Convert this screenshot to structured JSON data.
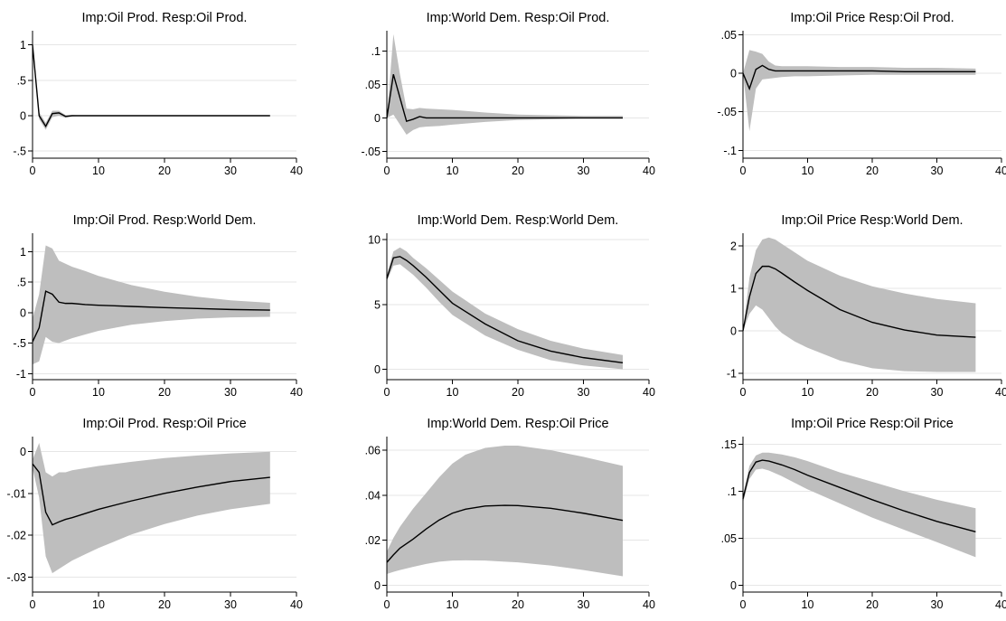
{
  "chart_data": [
    {
      "type": "area",
      "title": "Imp:Oil Prod. Resp:Oil Prod.",
      "xlim": [
        0,
        40
      ],
      "ylim": [
        -0.6,
        1.2
      ],
      "xticks": [
        0,
        10,
        20,
        30,
        40
      ],
      "xtick_labels": [
        "0",
        "10",
        "20",
        "30",
        "40"
      ],
      "yticks": [
        -0.5,
        0,
        0.5,
        1
      ],
      "ytick_labels": [
        "-.5",
        "0",
        ".5",
        "1"
      ],
      "grid": true,
      "series": [
        {
          "type": "line",
          "x": [
            0,
            1,
            2,
            3,
            4,
            5,
            6,
            8,
            10,
            15,
            20,
            25,
            30,
            36
          ],
          "values": [
            1.0,
            0.0,
            -0.15,
            0.03,
            0.04,
            -0.01,
            0.0,
            0.0,
            0.0,
            0.0,
            0.0,
            0.0,
            0.0,
            0.0
          ]
        },
        {
          "type": "band",
          "x": [
            0,
            1,
            2,
            3,
            4,
            5,
            6,
            8,
            10,
            15,
            20,
            25,
            30,
            36
          ],
          "lower": [
            1.0,
            -0.05,
            -0.2,
            -0.02,
            0.0,
            -0.03,
            -0.01,
            0.0,
            0.0,
            0.0,
            0.0,
            0.0,
            0.0,
            0.0
          ],
          "upper": [
            1.0,
            0.05,
            -0.1,
            0.07,
            0.07,
            0.01,
            0.01,
            0.0,
            0.0,
            0.0,
            0.0,
            0.0,
            0.0,
            0.0
          ]
        }
      ]
    },
    {
      "type": "area",
      "title": "Imp:World Dem. Resp:Oil Prod.",
      "xlim": [
        0,
        40
      ],
      "ylim": [
        -0.06,
        0.13
      ],
      "xticks": [
        0,
        10,
        20,
        30,
        40
      ],
      "xtick_labels": [
        "0",
        "10",
        "20",
        "30",
        "40"
      ],
      "yticks": [
        -0.05,
        0,
        0.05,
        0.1
      ],
      "ytick_labels": [
        "-.05",
        "0",
        ".05",
        ".1"
      ],
      "grid": true,
      "series": [
        {
          "type": "line",
          "x": [
            0,
            1,
            2,
            3,
            4,
            5,
            6,
            8,
            10,
            15,
            20,
            25,
            30,
            36
          ],
          "values": [
            0.0,
            0.065,
            0.03,
            -0.005,
            -0.002,
            0.002,
            0.0,
            0.0,
            0.0,
            0.0,
            0.0,
            0.0,
            0.0,
            0.0
          ]
        },
        {
          "type": "band",
          "x": [
            0,
            1,
            2,
            3,
            4,
            5,
            6,
            8,
            10,
            15,
            20,
            25,
            30,
            36
          ],
          "lower": [
            0.0,
            0.005,
            -0.01,
            -0.025,
            -0.018,
            -0.014,
            -0.013,
            -0.012,
            -0.01,
            -0.006,
            -0.003,
            -0.002,
            -0.001,
            -0.001
          ],
          "upper": [
            0.0,
            0.125,
            0.065,
            0.014,
            0.013,
            0.015,
            0.014,
            0.013,
            0.012,
            0.008,
            0.005,
            0.004,
            0.003,
            0.003
          ]
        }
      ]
    },
    {
      "type": "area",
      "title": "Imp:Oil Price Resp:Oil Prod.",
      "xlim": [
        0,
        40
      ],
      "ylim": [
        -0.11,
        0.055
      ],
      "xticks": [
        0,
        10,
        20,
        30,
        40
      ],
      "xtick_labels": [
        "0",
        "10",
        "20",
        "30",
        "40"
      ],
      "yticks": [
        -0.1,
        -0.05,
        0,
        0.05
      ],
      "ytick_labels": [
        "-.1",
        "-.05",
        "0",
        ".05"
      ],
      "grid": true,
      "series": [
        {
          "type": "line",
          "x": [
            0,
            1,
            2,
            3,
            4,
            5,
            6,
            8,
            10,
            15,
            20,
            25,
            30,
            36
          ],
          "values": [
            0.0,
            -0.02,
            0.005,
            0.01,
            0.005,
            0.003,
            0.003,
            0.003,
            0.003,
            0.003,
            0.003,
            0.002,
            0.002,
            0.002
          ]
        },
        {
          "type": "band",
          "x": [
            0,
            1,
            2,
            3,
            4,
            5,
            6,
            8,
            10,
            15,
            20,
            25,
            30,
            36
          ],
          "lower": [
            0.0,
            -0.075,
            -0.02,
            -0.008,
            -0.007,
            -0.006,
            -0.005,
            -0.004,
            -0.004,
            -0.003,
            -0.002,
            -0.002,
            -0.002,
            -0.002
          ],
          "upper": [
            0.0,
            0.03,
            0.028,
            0.025,
            0.015,
            0.01,
            0.009,
            0.009,
            0.009,
            0.008,
            0.008,
            0.007,
            0.007,
            0.006
          ]
        }
      ]
    },
    {
      "type": "area",
      "title": "Imp:Oil Prod. Resp:World Dem.",
      "xlim": [
        0,
        40
      ],
      "ylim": [
        -1.1,
        1.3
      ],
      "xticks": [
        0,
        10,
        20,
        30,
        40
      ],
      "xtick_labels": [
        "0",
        "10",
        "20",
        "30",
        "40"
      ],
      "yticks": [
        -1,
        -0.5,
        0,
        0.5,
        1
      ],
      "ytick_labels": [
        "-1",
        "-.5",
        "0",
        ".5",
        "1"
      ],
      "grid": true,
      "series": [
        {
          "type": "line",
          "x": [
            0,
            1,
            2,
            3,
            4,
            5,
            6,
            8,
            10,
            15,
            20,
            25,
            30,
            36
          ],
          "values": [
            -0.48,
            -0.25,
            0.35,
            0.3,
            0.17,
            0.15,
            0.15,
            0.13,
            0.12,
            0.1,
            0.08,
            0.065,
            0.05,
            0.04
          ]
        },
        {
          "type": "band",
          "x": [
            0,
            1,
            2,
            3,
            4,
            5,
            6,
            8,
            10,
            15,
            20,
            25,
            30,
            36
          ],
          "lower": [
            -0.85,
            -0.8,
            -0.4,
            -0.48,
            -0.5,
            -0.46,
            -0.42,
            -0.36,
            -0.3,
            -0.2,
            -0.14,
            -0.1,
            -0.08,
            -0.07
          ],
          "upper": [
            -0.1,
            0.3,
            1.1,
            1.05,
            0.85,
            0.8,
            0.75,
            0.68,
            0.6,
            0.45,
            0.34,
            0.26,
            0.2,
            0.16
          ]
        }
      ]
    },
    {
      "type": "area",
      "title": "Imp:World Dem. Resp:World Dem.",
      "xlim": [
        0,
        40
      ],
      "ylim": [
        -0.8,
        10.5
      ],
      "xticks": [
        0,
        10,
        20,
        30,
        40
      ],
      "xtick_labels": [
        "0",
        "10",
        "20",
        "30",
        "40"
      ],
      "yticks": [
        0,
        5,
        10
      ],
      "ytick_labels": [
        "0",
        "5",
        "10"
      ],
      "grid": true,
      "series": [
        {
          "type": "line",
          "x": [
            0,
            1,
            2,
            3,
            4,
            6,
            8,
            10,
            15,
            20,
            25,
            30,
            36
          ],
          "values": [
            7.0,
            8.6,
            8.7,
            8.4,
            8.0,
            7.1,
            6.1,
            5.1,
            3.5,
            2.2,
            1.4,
            0.9,
            0.5
          ]
        },
        {
          "type": "band",
          "x": [
            0,
            1,
            2,
            3,
            4,
            6,
            8,
            10,
            15,
            20,
            25,
            30,
            36
          ],
          "lower": [
            6.8,
            8.0,
            8.1,
            7.7,
            7.3,
            6.3,
            5.2,
            4.2,
            2.6,
            1.5,
            0.7,
            0.3,
            0.0
          ],
          "upper": [
            7.3,
            9.1,
            9.4,
            9.1,
            8.6,
            7.8,
            6.9,
            6.0,
            4.3,
            3.1,
            2.2,
            1.6,
            1.1
          ]
        }
      ]
    },
    {
      "type": "area",
      "title": "Imp:Oil Price Resp:World Dem.",
      "xlim": [
        0,
        40
      ],
      "ylim": [
        -1.15,
        2.3
      ],
      "xticks": [
        0,
        10,
        20,
        30,
        40
      ],
      "xtick_labels": [
        "0",
        "10",
        "20",
        "30",
        "40"
      ],
      "yticks": [
        -1,
        0,
        1,
        2
      ],
      "ytick_labels": [
        "-1",
        "0",
        "1",
        "2"
      ],
      "grid": true,
      "series": [
        {
          "type": "line",
          "x": [
            0,
            1,
            2,
            3,
            4,
            5,
            6,
            8,
            10,
            15,
            20,
            25,
            30,
            36
          ],
          "values": [
            0.0,
            0.8,
            1.35,
            1.52,
            1.52,
            1.46,
            1.36,
            1.15,
            0.95,
            0.5,
            0.2,
            0.02,
            -0.1,
            -0.15
          ]
        },
        {
          "type": "band",
          "x": [
            0,
            1,
            2,
            3,
            4,
            5,
            6,
            8,
            10,
            15,
            20,
            25,
            30,
            36
          ],
          "lower": [
            0.0,
            0.4,
            0.6,
            0.5,
            0.3,
            0.1,
            -0.05,
            -0.25,
            -0.4,
            -0.7,
            -0.88,
            -0.95,
            -0.97,
            -0.97
          ],
          "upper": [
            0.0,
            1.25,
            1.9,
            2.15,
            2.2,
            2.15,
            2.05,
            1.85,
            1.65,
            1.3,
            1.05,
            0.88,
            0.75,
            0.65
          ]
        }
      ]
    },
    {
      "type": "area",
      "title": "Imp:Oil Prod. Resp:Oil Price",
      "xlim": [
        0,
        40
      ],
      "ylim": [
        -0.0335,
        0.0035
      ],
      "xticks": [
        0,
        10,
        20,
        30,
        40
      ],
      "xtick_labels": [
        "0",
        "10",
        "20",
        "30",
        "40"
      ],
      "yticks": [
        -0.03,
        -0.02,
        -0.01,
        0
      ],
      "ytick_labels": [
        "-.03",
        "-.02",
        "-.01",
        "0"
      ],
      "grid": true,
      "series": [
        {
          "type": "line",
          "x": [
            0,
            1,
            2,
            3,
            4,
            5,
            6,
            8,
            10,
            15,
            20,
            25,
            30,
            36
          ],
          "values": [
            -0.003,
            -0.005,
            -0.0145,
            -0.0175,
            -0.0168,
            -0.0162,
            -0.0158,
            -0.0148,
            -0.0138,
            -0.0118,
            -0.01,
            -0.0085,
            -0.0072,
            -0.0062
          ]
        },
        {
          "type": "band",
          "x": [
            0,
            1,
            2,
            3,
            4,
            5,
            6,
            8,
            10,
            15,
            20,
            25,
            30,
            36
          ],
          "lower": [
            -0.004,
            -0.011,
            -0.025,
            -0.029,
            -0.028,
            -0.027,
            -0.026,
            -0.0245,
            -0.023,
            -0.0198,
            -0.0173,
            -0.0153,
            -0.0138,
            -0.0125
          ],
          "upper": [
            -0.002,
            0.002,
            -0.005,
            -0.006,
            -0.005,
            -0.005,
            -0.0045,
            -0.004,
            -0.0035,
            -0.0025,
            -0.0016,
            -0.001,
            -0.0005,
            -0.0001
          ]
        }
      ]
    },
    {
      "type": "area",
      "title": "Imp:World Dem. Resp:Oil Price",
      "xlim": [
        0,
        40
      ],
      "ylim": [
        -0.003,
        0.066
      ],
      "xticks": [
        0,
        10,
        20,
        30,
        40
      ],
      "xtick_labels": [
        "0",
        "10",
        "20",
        "30",
        "40"
      ],
      "yticks": [
        0,
        0.02,
        0.04,
        0.06
      ],
      "ytick_labels": [
        "0",
        ".02",
        ".04",
        ".06"
      ],
      "grid": true,
      "series": [
        {
          "type": "line",
          "x": [
            0,
            1,
            2,
            3,
            4,
            6,
            8,
            10,
            12,
            15,
            18,
            20,
            25,
            30,
            36
          ],
          "values": [
            0.0102,
            0.0135,
            0.0165,
            0.0185,
            0.0205,
            0.025,
            0.029,
            0.032,
            0.0338,
            0.0352,
            0.0355,
            0.0354,
            0.0342,
            0.032,
            0.0288
          ]
        },
        {
          "type": "band",
          "x": [
            0,
            1,
            2,
            3,
            4,
            6,
            8,
            10,
            12,
            15,
            18,
            20,
            25,
            30,
            36
          ],
          "lower": [
            0.005,
            0.006,
            0.0068,
            0.0075,
            0.0082,
            0.0095,
            0.0105,
            0.011,
            0.0111,
            0.011,
            0.0105,
            0.0102,
            0.0088,
            0.0068,
            0.004
          ],
          "upper": [
            0.015,
            0.021,
            0.026,
            0.03,
            0.034,
            0.041,
            0.048,
            0.054,
            0.058,
            0.061,
            0.062,
            0.062,
            0.06,
            0.057,
            0.053
          ]
        }
      ]
    },
    {
      "type": "area",
      "title": "Imp:Oil Price Resp:Oil Price",
      "xlim": [
        0,
        40
      ],
      "ylim": [
        -0.007,
        0.158
      ],
      "xticks": [
        0,
        10,
        20,
        30,
        40
      ],
      "xtick_labels": [
        "0",
        "10",
        "20",
        "30",
        "40"
      ],
      "yticks": [
        0,
        0.05,
        0.1,
        0.15
      ],
      "ytick_labels": [
        "0",
        ".05",
        ".1",
        ".15"
      ],
      "grid": true,
      "series": [
        {
          "type": "line",
          "x": [
            0,
            1,
            2,
            3,
            4,
            6,
            8,
            10,
            15,
            20,
            25,
            30,
            36
          ],
          "values": [
            0.092,
            0.12,
            0.131,
            0.133,
            0.132,
            0.128,
            0.123,
            0.117,
            0.104,
            0.091,
            0.079,
            0.068,
            0.057
          ]
        },
        {
          "type": "band",
          "x": [
            0,
            1,
            2,
            3,
            4,
            6,
            8,
            10,
            15,
            20,
            25,
            30,
            36
          ],
          "lower": [
            0.088,
            0.113,
            0.123,
            0.124,
            0.122,
            0.116,
            0.109,
            0.102,
            0.087,
            0.072,
            0.059,
            0.046,
            0.03
          ]
        },
        {
          "type": "band-upper",
          "x": [
            0,
            1,
            2,
            3,
            4,
            6,
            8,
            10,
            15,
            20,
            25,
            30,
            36
          ],
          "values": [
            0.096,
            0.127,
            0.138,
            0.141,
            0.141,
            0.139,
            0.136,
            0.132,
            0.12,
            0.11,
            0.1,
            0.091,
            0.082
          ]
        }
      ]
    }
  ],
  "colors": {
    "band": "#bebebe",
    "line": "#000000",
    "grid": "#e6e6e6",
    "axis": "#000000"
  }
}
